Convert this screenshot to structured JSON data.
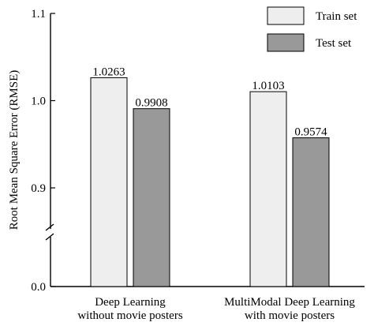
{
  "chart_data": {
    "type": "bar",
    "ylabel": "Root Mean Square Error (RMSE)",
    "axis_break": true,
    "yticks": [
      "0.0",
      "0.9",
      "1.0",
      "1.1"
    ],
    "ylim": [
      0.8,
      1.1
    ],
    "categories": [
      [
        "Deep Learning",
        "without movie posters"
      ],
      [
        "MultiModal Deep Learning",
        "with movie posters"
      ]
    ],
    "series": [
      {
        "name": "Train set",
        "color": "#eeeeee",
        "values": [
          1.0263,
          1.0103
        ],
        "labels": [
          "1.0263",
          "1.0103"
        ]
      },
      {
        "name": "Test set",
        "color": "#999999",
        "values": [
          0.9908,
          0.9574
        ],
        "labels": [
          "0.9908",
          "0.9574"
        ]
      }
    ],
    "legend": "top-right",
    "grid": false
  }
}
